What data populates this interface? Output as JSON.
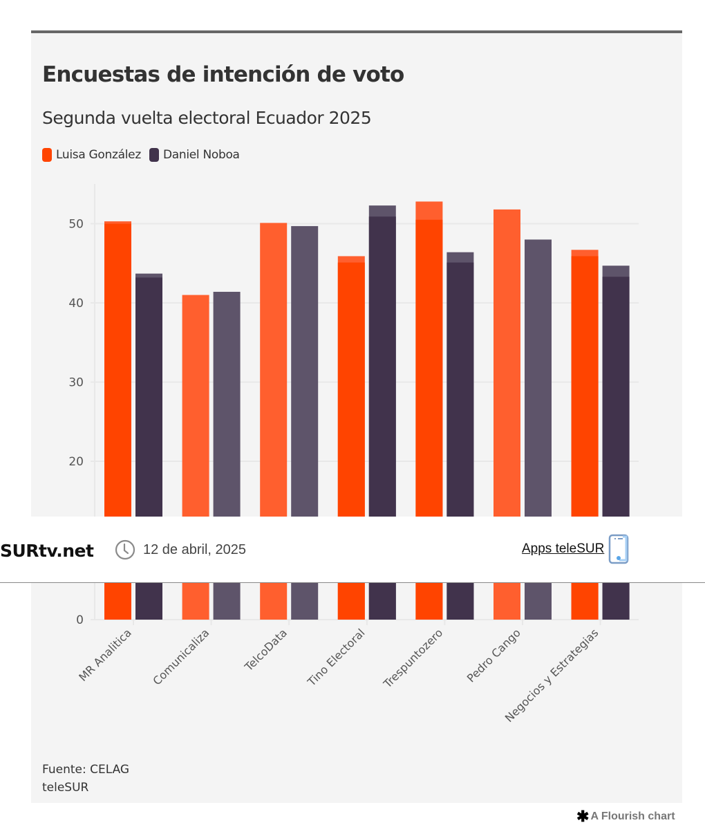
{
  "header": {
    "title": "Encuestas de intención de voto",
    "subtitle": "Segunda vuelta electoral Ecuador 2025"
  },
  "legend": [
    {
      "label": "Luisa González",
      "color": "#ff4400"
    },
    {
      "label": "Daniel Noboa",
      "color": "#41334c"
    }
  ],
  "footer": {
    "source": "Fuente: CELAG",
    "credit": "teleSUR",
    "flourish": "A Flourish chart"
  },
  "banner": {
    "brand": "SURtv.net",
    "date": "12 de abril, 2025",
    "apps_link": "Apps teleSUR",
    "clock_icon": "clock-icon",
    "phone_icon": "phone-icon"
  },
  "chart_data": {
    "type": "bar",
    "title": "Encuestas de intención de voto",
    "subtitle": "Segunda vuelta electoral Ecuador 2025",
    "xlabel": "",
    "ylabel": "",
    "ylim": [
      0,
      55
    ],
    "yticks": [
      0,
      10,
      20,
      30,
      40,
      50
    ],
    "ytick_labels_visible": [
      "0",
      "20",
      "30",
      "40",
      "50"
    ],
    "grid": true,
    "legend_position": "top-left",
    "categories": [
      "MR Analitica",
      "Comunicaliza",
      "TelcoData",
      "Tino Electoral",
      "Trespuntozero",
      "Pedro Cango",
      "Negocios y Estrategias"
    ],
    "series": [
      {
        "name": "Luisa González",
        "layer": "outer",
        "color": "#ff5f2e",
        "values": [
          50.3,
          41.0,
          50.1,
          45.9,
          52.8,
          51.8,
          46.7
        ]
      },
      {
        "name": "Daniel Noboa",
        "layer": "outer",
        "color": "#5e546a",
        "values": [
          43.7,
          41.4,
          49.7,
          52.3,
          46.4,
          48.0,
          44.7
        ]
      },
      {
        "name": "Luisa González",
        "layer": "inner",
        "color": "#ff4400",
        "values": [
          50.0,
          null,
          null,
          45.1,
          50.5,
          null,
          45.9
        ]
      },
      {
        "name": "Daniel Noboa",
        "layer": "inner",
        "color": "#41334c",
        "values": [
          43.2,
          null,
          null,
          50.9,
          45.1,
          null,
          43.3
        ]
      }
    ]
  }
}
